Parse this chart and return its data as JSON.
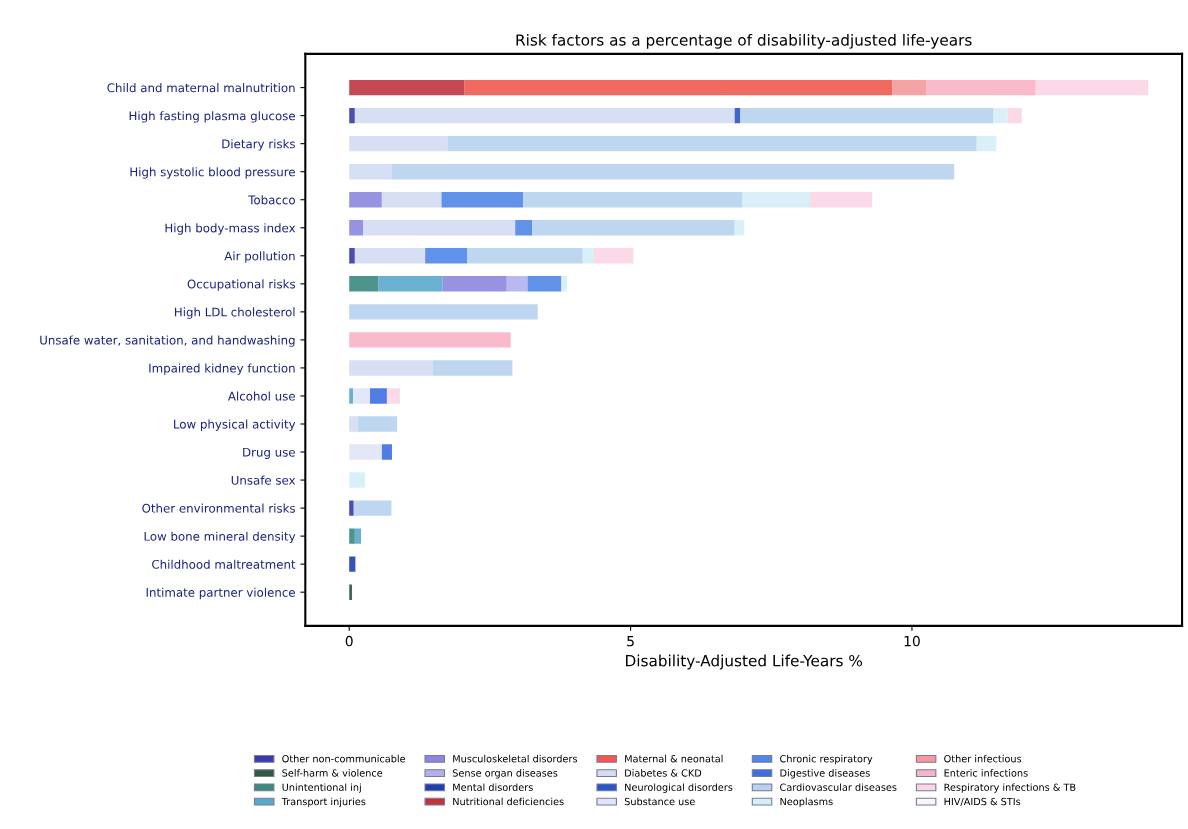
{
  "chart_data": {
    "type": "bar",
    "orientation": "horizontal",
    "stacked": true,
    "title": "Risk factors as a percentage of disability-adjusted life-years",
    "xlabel": "Disability-Adjusted Life-Years %",
    "categories": [
      "Child and maternal malnutrition",
      "High fasting plasma glucose",
      "Dietary risks",
      "High systolic blood pressure",
      "Tobacco",
      "High body-mass index",
      "Air pollution",
      "Occupational risks",
      "High LDL cholesterol",
      "Unsafe water, sanitation, and handwashing",
      "Impaired kidney function",
      "Alcohol use",
      "Low physical activity",
      "Drug use",
      "Unsafe sex",
      "Other environmental risks",
      "Low bone mineral density",
      "Childhood maltreatment",
      "Intimate partner violence"
    ],
    "xlim": [
      -0.78,
      14.8
    ],
    "xticks": [
      0,
      5,
      10
    ],
    "grid": false,
    "legend": "bottom",
    "series": [
      {
        "name": "Other non-communicable",
        "color": "#3a3aa8",
        "values": [
          null,
          0.1,
          null,
          null,
          null,
          null,
          0.1,
          null,
          null,
          null,
          null,
          null,
          null,
          null,
          null,
          0.08,
          null,
          null,
          null
        ]
      },
      {
        "name": "Self-harm & violence",
        "color": "#2f5a45",
        "values": [
          null,
          null,
          null,
          null,
          null,
          null,
          null,
          null,
          null,
          null,
          null,
          null,
          null,
          null,
          null,
          null,
          null,
          null,
          0.05
        ]
      },
      {
        "name": "Unintentional inj",
        "color": "#3a8a80",
        "values": [
          null,
          null,
          null,
          null,
          null,
          null,
          null,
          0.52,
          null,
          null,
          null,
          null,
          null,
          null,
          null,
          null,
          0.1,
          null,
          null
        ]
      },
      {
        "name": "Transport injuries",
        "color": "#5aa8cc",
        "values": [
          null,
          null,
          null,
          null,
          null,
          null,
          null,
          1.14,
          null,
          null,
          null,
          0.07,
          null,
          null,
          null,
          null,
          0.11,
          null,
          null
        ]
      },
      {
        "name": "Musculoskeletal disorders",
        "color": "#8d86e0",
        "values": [
          null,
          null,
          null,
          null,
          0.58,
          0.25,
          null,
          1.14,
          null,
          null,
          null,
          null,
          null,
          null,
          null,
          null,
          null,
          null,
          null
        ]
      },
      {
        "name": "Sense organ diseases",
        "color": "#b3b0ee",
        "values": [
          null,
          null,
          null,
          null,
          null,
          null,
          null,
          0.37,
          null,
          null,
          null,
          null,
          null,
          null,
          null,
          null,
          null,
          null,
          null
        ]
      },
      {
        "name": "Mental disorders",
        "color": "#1f3fb0",
        "values": [
          null,
          null,
          null,
          null,
          null,
          null,
          null,
          null,
          null,
          null,
          null,
          null,
          null,
          null,
          null,
          null,
          null,
          0.11,
          null
        ]
      },
      {
        "name": "Nutritional deficiencies",
        "color": "#c0343f",
        "values": [
          2.05,
          null,
          null,
          null,
          null,
          null,
          null,
          null,
          null,
          null,
          null,
          null,
          null,
          null,
          null,
          null,
          null,
          null,
          null
        ]
      },
      {
        "name": "Maternal & neonatal",
        "color": "#ef5a4e",
        "values": [
          7.6,
          null,
          null,
          null,
          null,
          null,
          null,
          null,
          null,
          null,
          null,
          null,
          null,
          null,
          null,
          null,
          null,
          null,
          null
        ]
      },
      {
        "name": "Diabetes & CKD",
        "color": "#d3dcf3",
        "values": [
          null,
          6.75,
          1.75,
          0.75,
          1.06,
          2.7,
          1.25,
          null,
          null,
          null,
          1.48,
          null,
          0.15,
          null,
          null,
          null,
          null,
          null,
          null
        ]
      },
      {
        "name": "Neurological disorders",
        "color": "#2a54c8",
        "values": [
          null,
          0.1,
          null,
          null,
          null,
          null,
          null,
          null,
          null,
          null,
          null,
          null,
          null,
          null,
          null,
          null,
          null,
          null,
          null
        ]
      },
      {
        "name": "Substance use",
        "color": "#dfe6f7",
        "values": [
          null,
          null,
          null,
          null,
          null,
          null,
          null,
          null,
          null,
          null,
          null,
          0.3,
          null,
          0.58,
          null,
          null,
          null,
          null,
          null
        ]
      },
      {
        "name": "Chronic respiratory",
        "color": "#4f86e8",
        "values": [
          null,
          null,
          null,
          null,
          1.45,
          0.3,
          0.75,
          0.6,
          null,
          null,
          null,
          null,
          null,
          null,
          null,
          null,
          null,
          null,
          null
        ]
      },
      {
        "name": "Digestive diseases",
        "color": "#3d6fe0",
        "values": [
          null,
          null,
          null,
          null,
          null,
          null,
          null,
          null,
          null,
          null,
          null,
          0.3,
          null,
          0.18,
          null,
          null,
          null,
          null,
          null
        ]
      },
      {
        "name": "Cardiovascular diseases",
        "color": "#b8d1f0",
        "values": [
          null,
          4.5,
          9.4,
          10.0,
          3.9,
          3.6,
          2.05,
          null,
          3.35,
          null,
          1.42,
          null,
          0.7,
          null,
          null,
          0.67,
          null,
          null,
          null
        ]
      },
      {
        "name": "Neoplasms",
        "color": "#d6eef8",
        "values": [
          null,
          0.25,
          0.35,
          null,
          1.2,
          0.17,
          0.2,
          0.1,
          null,
          null,
          null,
          null,
          null,
          null,
          0.28,
          null,
          null,
          null,
          null
        ]
      },
      {
        "name": "Other infectious",
        "color": "#f39a9a",
        "values": [
          0.6,
          null,
          null,
          null,
          null,
          null,
          null,
          null,
          null,
          null,
          null,
          null,
          null,
          null,
          null,
          null,
          null,
          null,
          null
        ]
      },
      {
        "name": "Enteric infections",
        "color": "#f8b4c5",
        "values": [
          1.95,
          null,
          null,
          null,
          null,
          null,
          null,
          null,
          null,
          2.87,
          null,
          null,
          null,
          null,
          null,
          null,
          null,
          null,
          null
        ]
      },
      {
        "name": "Respiratory infections & TB",
        "color": "#fbd5e6",
        "values": [
          2.0,
          0.25,
          null,
          null,
          1.1,
          null,
          0.7,
          null,
          null,
          null,
          null,
          0.23,
          null,
          null,
          null,
          null,
          null,
          null,
          null
        ]
      },
      {
        "name": "HIV/AIDS & STIs",
        "color": "#fdf5fa",
        "values": [
          null,
          null,
          null,
          null,
          null,
          null,
          null,
          null,
          null,
          null,
          null,
          null,
          null,
          null,
          null,
          null,
          null,
          null,
          null
        ]
      }
    ]
  }
}
